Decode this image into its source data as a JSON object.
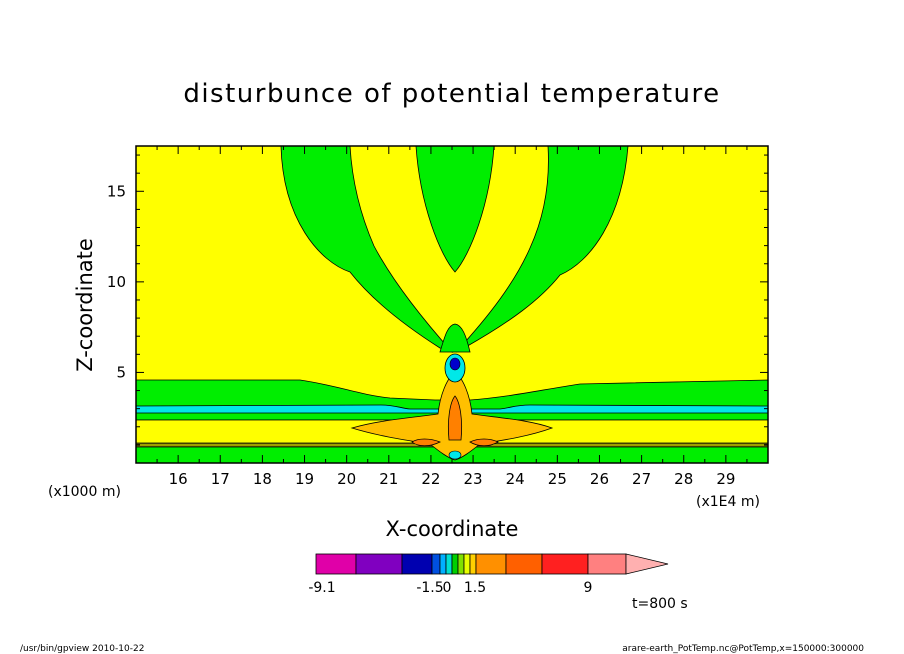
{
  "chart_data": {
    "type": "heatmap",
    "title": "disturbunce of potential temperature",
    "xlabel": "X-coordinate",
    "ylabel": "Z-coordinate",
    "x_unit_left": "(x1000 m)",
    "x_unit_right": "(x1E4 m)",
    "xlim": [
      15.0,
      30.0
    ],
    "ylim": [
      0.0,
      17.5
    ],
    "x_ticks": [
      "16",
      "17",
      "18",
      "19",
      "20",
      "21",
      "22",
      "23",
      "24",
      "25",
      "26",
      "27",
      "28",
      "29"
    ],
    "y_ticks": [
      "5",
      "10",
      "15"
    ],
    "colorbar": {
      "tick_labels": [
        "-9.1",
        "-1.5",
        "0",
        "1.5",
        "9"
      ],
      "colors": [
        "#e000a8",
        "#8000c0",
        "#0000b0",
        "#0050e0",
        "#00b0ff",
        "#00e0d0",
        "#00d000",
        "#80e000",
        "#e8ff00",
        "#ffd000",
        "#ff9000",
        "#ff6000",
        "#ff2020",
        "#ff8080",
        "#ffb0b0"
      ]
    },
    "time_label": "t=800 s",
    "colors": {
      "background_level": "#ffff00",
      "weak_negative": "#00ee00",
      "negative": "#00e8e8",
      "strong_negative": "#0000cc",
      "positive": "#ffc000",
      "strong_positive": "#ff8000"
    }
  },
  "footer": {
    "left": "/usr/bin/gpview  2010-10-22",
    "right": "arare-earth_PotTemp.nc@PotTemp,x=150000:300000"
  }
}
